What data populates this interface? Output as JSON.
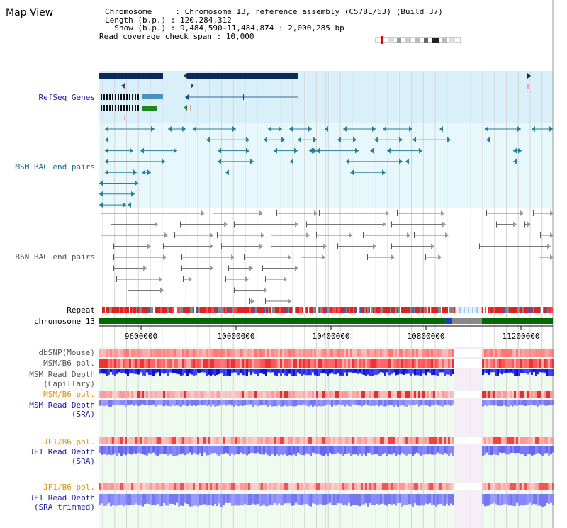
{
  "header": {
    "title": "Map View",
    "chromosome_line": "Chromosome     : Chromosome 13, reference assembly (C57BL/6J) (Build 37)",
    "length_line": "Length (b.p.) : 120,284,312",
    "show_line": "  Show (b.p.) : 9,484,590-11,484,874 : 2,000,285 bp",
    "coverage_line": "Read coverage check span : 10,000"
  },
  "tracks": {
    "refseq": "RefSeq Genes",
    "msm_bac": "MSM BAC end pairs",
    "b6n_bac": "B6N BAC end pairs",
    "repeat": "Repeat",
    "chromosome": "chromosome 13",
    "dbsnp": "dbSNP(Mouse)",
    "msm_b6_pol_1": "MSM/B6 pol.",
    "msm_read_depth_cap_1": "MSM Read Depth",
    "msm_read_depth_cap_2": "(Capillary)",
    "msm_b6_pol_2": "MSM/B6 pol.",
    "msm_read_depth_sra_1": "MSM Read Depth",
    "msm_read_depth_sra_2": "(SRA)",
    "jf1_b6_pol_1": "JF1/B6 pol.",
    "jf1_read_depth_1": "JF1 Read Depth",
    "jf1_read_depth_2": "(SRA)",
    "jf1_b6_pol_2": "JF1/B6 pol.",
    "jf1_read_depth_trim_1": "JF1 Read Depth",
    "jf1_read_depth_trim_2": "(SRA trimmed)"
  },
  "axis": {
    "ticks": [
      "9600000",
      "10000000",
      "10400000",
      "10800000",
      "11200000"
    ]
  },
  "colors": {
    "refseq_bg": "#d9f0fb",
    "msm_bac_bg": "#e6f8fb",
    "depth_bg": "#f0fbf0",
    "gene_dark": "#0a2a5a",
    "msm_feature": "#2a7f9a",
    "b6n_feature": "#777777",
    "chrom_green": "#006a00",
    "label_blue": "#1a1aa0",
    "label_orange": "#e8900a",
    "label_teal": "#1a6a8a"
  }
}
